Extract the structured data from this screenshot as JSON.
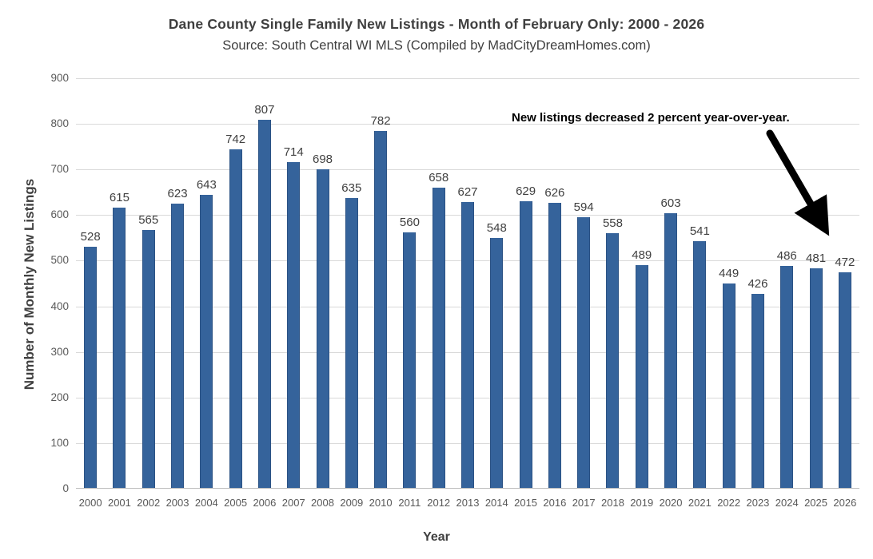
{
  "header": {
    "title": "Dane County Single Family New Listings - Month of February Only: 2000 - 2026",
    "subtitle": "Source: South Central WI MLS (Compiled by MadCityDreamHomes.com)"
  },
  "annotation": {
    "text": "New listings decreased 2 percent year-over-year.",
    "arrow_icon": "down-right-arrow",
    "color": "#000000"
  },
  "chart_data": {
    "type": "bar",
    "title": "Dane County Single Family New Listings - Month of February Only: 2000 - 2026",
    "subtitle": "Source: South Central WI MLS (Compiled by MadCityDreamHomes.com)",
    "categories": [
      "2000",
      "2001",
      "2002",
      "2003",
      "2004",
      "2005",
      "2006",
      "2007",
      "2008",
      "2009",
      "2010",
      "2011",
      "2012",
      "2013",
      "2014",
      "2015",
      "2016",
      "2017",
      "2018",
      "2019",
      "2020",
      "2021",
      "2022",
      "2023",
      "2024",
      "2025",
      "2026"
    ],
    "values": [
      528,
      615,
      565,
      623,
      643,
      742,
      807,
      714,
      698,
      635,
      782,
      560,
      658,
      627,
      548,
      629,
      626,
      594,
      558,
      489,
      603,
      541,
      449,
      426,
      486,
      481,
      472
    ],
    "xlabel": "Year",
    "ylabel": "Number of Monthly New Listings",
    "ylim": [
      0,
      900
    ],
    "ytick_step": 100,
    "grid": true,
    "legend": "none",
    "data_labels": true,
    "bar_color": "#35639b",
    "gridline_color": "#d9d9d9",
    "label_color": "#404040",
    "tick_color": "#595959"
  }
}
